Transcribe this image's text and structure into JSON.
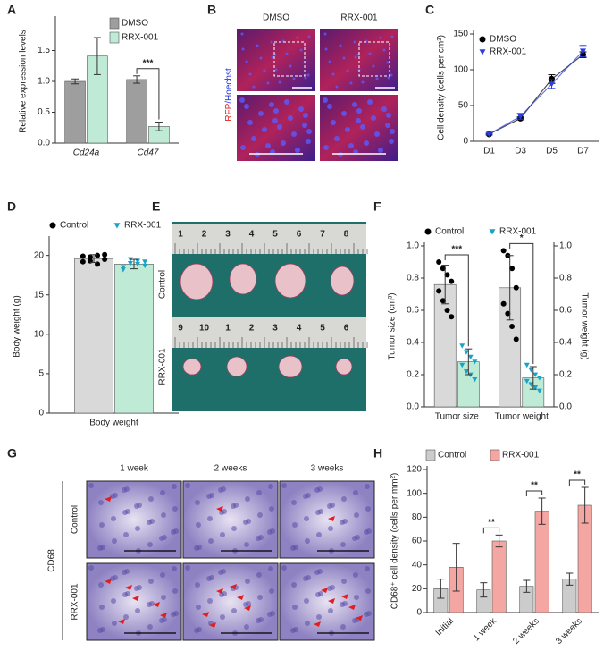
{
  "chart_data": [
    {
      "type": "bar",
      "panel": "A",
      "ylabel": "Relative expression levels",
      "categories": [
        "Cd24a",
        "Cd47"
      ],
      "series": [
        {
          "name": "DMSO",
          "color": "#9e9e9e",
          "values": [
            1.0,
            1.03
          ],
          "errors": [
            0.04,
            0.06
          ]
        },
        {
          "name": "RRX-001",
          "color": "#bfead6",
          "values": [
            1.41,
            0.27
          ],
          "errors": [
            0.3,
            0.07
          ]
        }
      ],
      "ylim": [
        0,
        2.0
      ],
      "yticks": [
        {
          "value": 0,
          "label": "0.0"
        },
        {
          "value": 0.5,
          "label": "0.5"
        },
        {
          "value": 1.0,
          "label": "1.0"
        },
        {
          "value": 1.5,
          "label": "1.5"
        }
      ],
      "annotations": [
        {
          "text": "***",
          "category": "Cd47"
        }
      ],
      "legend": "upper right"
    },
    {
      "type": "line",
      "panel": "C",
      "ylabel": "Cell density (cells per cm²)",
      "categories": [
        "D1",
        "D3",
        "D5",
        "D7"
      ],
      "series": [
        {
          "name": "DMSO",
          "color": "#000000",
          "marker": "circle",
          "values": [
            10,
            32,
            87,
            121
          ],
          "errors": [
            1,
            2,
            6,
            4
          ]
        },
        {
          "name": "RRX-001",
          "color": "#2a3ee0",
          "marker": "triangle",
          "values": [
            10,
            35,
            80,
            126
          ],
          "errors": [
            1,
            4,
            6,
            8
          ]
        }
      ],
      "ylim": [
        0,
        150
      ],
      "yticks": [
        0,
        50,
        100,
        150
      ],
      "legend": "upper left"
    },
    {
      "type": "bar",
      "panel": "D",
      "ylabel": "Body weight (g)",
      "categories": [
        "Body weight"
      ],
      "series": [
        {
          "name": "Control",
          "color": "#d9d9d9",
          "marker": "circle",
          "marker_color": "#000000",
          "values": [
            19.6
          ],
          "errors": [
            0.5
          ],
          "points": [
            [
              19.2,
              19.8,
              20.0,
              19.5,
              19.9,
              19.3,
              18.9,
              20.1
            ]
          ]
        },
        {
          "name": "RRX-001",
          "color": "#bfead6",
          "marker": "triangle",
          "marker_color": "#1ba3c6",
          "values": [
            18.9
          ],
          "errors": [
            0.6
          ],
          "points": [
            [
              18.5,
              19.0,
              19.3,
              18.7,
              18.2,
              19.5,
              18.9,
              19.2
            ]
          ]
        }
      ],
      "ylim": [
        0,
        22
      ],
      "yticks": [
        0,
        5,
        10,
        15,
        20
      ],
      "legend": "top"
    },
    {
      "type": "bar",
      "panel": "F",
      "ylabel": "Tumor size (cm³)",
      "y2label": "Tumor weight (g)",
      "categories": [
        "Tumor size",
        "Tumor weight"
      ],
      "category_axes": [
        "y",
        "y2"
      ],
      "series": [
        {
          "name": "Control",
          "color": "#d9d9d9",
          "marker": "circle",
          "marker_color": "#000000",
          "values": [
            0.76,
            0.74
          ],
          "errors": [
            0.12,
            0.2
          ],
          "points": [
            [
              0.9,
              0.86,
              0.82,
              0.78,
              0.72,
              0.66,
              0.6,
              0.56
            ],
            [
              0.97,
              0.94,
              0.86,
              0.74,
              0.64,
              0.58,
              0.5,
              0.42
            ]
          ]
        },
        {
          "name": "RRX-001",
          "color": "#bfead6",
          "marker": "triangle",
          "marker_color": "#1ba3c6",
          "values": [
            0.28,
            0.18
          ],
          "errors": [
            0.08,
            0.07
          ],
          "points": [
            [
              0.38,
              0.34,
              0.31,
              0.28,
              0.26,
              0.22,
              0.2,
              0.17
            ],
            [
              0.26,
              0.23,
              0.2,
              0.18,
              0.16,
              0.14,
              0.12,
              0.1
            ]
          ]
        }
      ],
      "ylim": [
        0,
        1.0
      ],
      "yticks": [
        {
          "value": 0,
          "label": "0.0"
        },
        {
          "value": 0.2,
          "label": "0.2"
        },
        {
          "value": 0.4,
          "label": "0.4"
        },
        {
          "value": 0.6,
          "label": "0.6"
        },
        {
          "value": 0.8,
          "label": "0.8"
        },
        {
          "value": 1.0,
          "label": "1.0"
        }
      ],
      "y2lim": [
        0,
        1.0
      ],
      "y2ticks": [
        {
          "value": 0,
          "label": "0.0"
        },
        {
          "value": 0.2,
          "label": "0.2"
        },
        {
          "value": 0.4,
          "label": "0.4"
        },
        {
          "value": 0.6,
          "label": "0.6"
        },
        {
          "value": 0.8,
          "label": "0.8"
        },
        {
          "value": 1.0,
          "label": "1.0"
        }
      ],
      "annotations": [
        {
          "text": "***",
          "category": "Tumor size"
        },
        {
          "text": "*",
          "category": "Tumor weight"
        }
      ],
      "legend": "top"
    },
    {
      "type": "bar",
      "panel": "H",
      "ylabel": "CD68⁺ cell density (cells per mm²)",
      "categories": [
        "Initial",
        "1 week",
        "2 weeks",
        "3 weeks"
      ],
      "rotate_xlabels": true,
      "series": [
        {
          "name": "Control",
          "color": "#cccccc",
          "values": [
            20,
            19,
            22,
            28
          ],
          "errors": [
            8,
            6,
            5,
            5
          ]
        },
        {
          "name": "RRX-001",
          "color": "#f4a6a2",
          "values": [
            38,
            60,
            85,
            90
          ],
          "errors": [
            20,
            5,
            11,
            15
          ]
        }
      ],
      "ylim": [
        0,
        120
      ],
      "yticks": [
        0,
        20,
        40,
        60,
        80,
        100,
        120
      ],
      "annotations": [
        {
          "text": "**",
          "category": "1 week"
        },
        {
          "text": "**",
          "category": "2 weeks"
        },
        {
          "text": "**",
          "category": "3 weeks"
        }
      ],
      "legend": "top"
    }
  ],
  "images": [
    {
      "panel": "B",
      "columns": [
        "DMSO",
        "RRX-001"
      ],
      "ylabel": [
        "RFP",
        "/Hoechst"
      ]
    },
    {
      "panel": "E",
      "rows": [
        "Control",
        "RRX-001"
      ],
      "ruler": [
        [
          "1",
          "2",
          "3",
          "4",
          "5",
          "6",
          "7",
          "8"
        ],
        [
          "9",
          "10",
          "1",
          "2",
          "3",
          "4",
          "5",
          "6"
        ]
      ]
    },
    {
      "panel": "G",
      "columns": [
        "1 week",
        "2 weeks",
        "3 weeks"
      ],
      "rows": [
        "Control",
        "RRX-001"
      ],
      "label": "CD68"
    }
  ]
}
